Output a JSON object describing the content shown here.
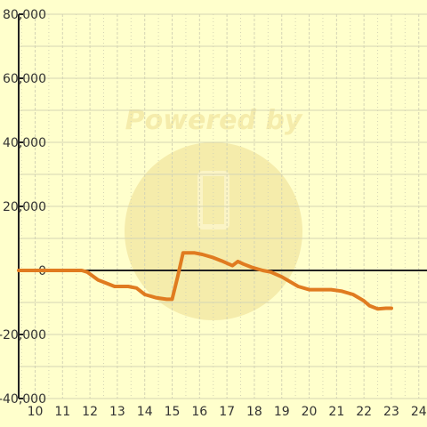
{
  "colors": {
    "background": "#ffffcc",
    "series": "#e07b20",
    "grid": "#d4d4b4",
    "axis": "#222222",
    "text": "#333333",
    "watermark": "#f4e9a6"
  },
  "watermark": {
    "text": "Powered by"
  },
  "chart_data": {
    "type": "line",
    "title": "",
    "xlabel": "",
    "ylabel": "",
    "xlim": [
      9.4,
      24.3
    ],
    "ylim": [
      -40000,
      80000
    ],
    "grid": true,
    "legend": "none",
    "x_ticks": [
      10,
      11,
      12,
      13,
      14,
      15,
      16,
      17,
      18,
      19,
      20,
      21,
      22,
      23,
      24
    ],
    "x_tick_labels": [
      "10",
      "11",
      "12",
      "13",
      "14",
      "15",
      "16",
      "17",
      "18",
      "19",
      "20",
      "21",
      "22",
      "23",
      "24"
    ],
    "y_ticks": [
      -40000,
      -20000,
      0,
      20000,
      40000,
      60000,
      80000
    ],
    "y_tick_labels": [
      "-40,000",
      "-20,000",
      "0",
      "20,000",
      "40,000",
      "60,000",
      "80,000"
    ],
    "series": [
      {
        "x": [
          9.4,
          11.7,
          11.9,
          12.3,
          12.6,
          12.9,
          13.4,
          13.7,
          14.0,
          14.4,
          14.8,
          15.0,
          15.2,
          15.4,
          15.8,
          16.1,
          16.5,
          16.8,
          17.2,
          17.4,
          17.6,
          17.9,
          18.3,
          18.6,
          19.0,
          19.3,
          19.6,
          20.0,
          20.4,
          20.8,
          21.2,
          21.6,
          21.8,
          22.0,
          22.2,
          22.5,
          22.8,
          23.0
        ],
        "y": [
          0,
          0,
          -500,
          -3000,
          -4000,
          -5000,
          -5000,
          -5500,
          -7500,
          -8500,
          -9000,
          -9000,
          -2000,
          5500,
          5500,
          5000,
          4000,
          3000,
          1500,
          2800,
          2000,
          1000,
          0,
          -500,
          -2000,
          -3500,
          -5000,
          -6000,
          -6000,
          -6000,
          -6500,
          -7500,
          -8500,
          -9500,
          -11000,
          -12000,
          -11800,
          -11800
        ]
      }
    ]
  }
}
